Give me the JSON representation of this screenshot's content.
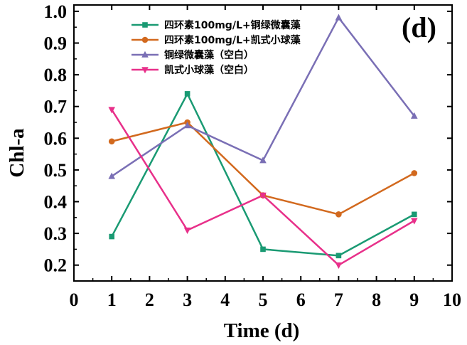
{
  "chart_data": {
    "type": "line",
    "panel_label": "(d)",
    "xlabel": "Time (d)",
    "ylabel": "Chl-a",
    "xlim": [
      0,
      10
    ],
    "ylim": [
      0.15,
      1.02
    ],
    "x_ticks": [
      "0",
      "1",
      "2",
      "3",
      "4",
      "5",
      "6",
      "7",
      "8",
      "9",
      "10"
    ],
    "y_ticks": [
      "0.2",
      "0.3",
      "0.4",
      "0.5",
      "0.6",
      "0.7",
      "0.8",
      "0.9",
      "1.0"
    ],
    "x": [
      1,
      3,
      5,
      7,
      9
    ],
    "grid": false,
    "legend_position": "top",
    "series": [
      {
        "name": "四环素100mg/L+铜绿微囊藻",
        "values": [
          0.29,
          0.74,
          0.25,
          0.23,
          0.36
        ],
        "color": "#1a9a73",
        "marker": "square"
      },
      {
        "name": "四环素100mg/L+凯式小球藻",
        "values": [
          0.59,
          0.65,
          0.42,
          0.36,
          0.49
        ],
        "color": "#d2691e",
        "marker": "circle"
      },
      {
        "name": "铜绿微囊藻（空白）",
        "values": [
          0.48,
          0.64,
          0.53,
          0.98,
          0.67
        ],
        "color": "#7a6fb5",
        "marker": "triangle-up"
      },
      {
        "name": "凯式小球藻（空白）",
        "values": [
          0.69,
          0.31,
          0.42,
          0.2,
          0.34
        ],
        "color": "#e8308a",
        "marker": "triangle-down"
      }
    ]
  }
}
